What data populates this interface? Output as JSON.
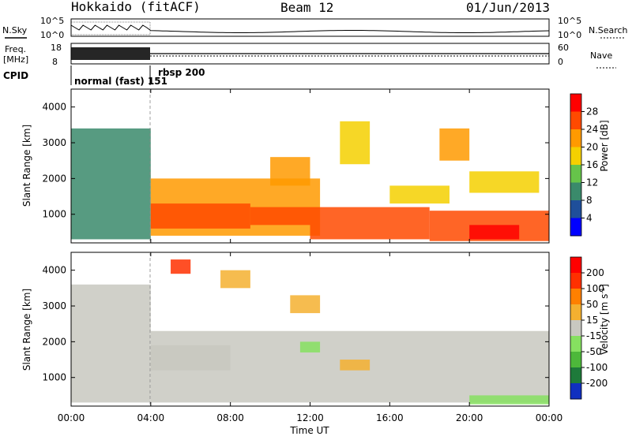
{
  "header": {
    "station": "Hokkaido (fitACF)",
    "beam": "Beam 12",
    "date": "01/Jun/2013"
  },
  "noise_panel": {
    "left_label": "N.Sky",
    "right_label": "N.Search",
    "left_ticks": [
      "10^5",
      "10^0"
    ],
    "right_ticks": [
      "10^5",
      "10^0"
    ]
  },
  "freq_panel": {
    "left_label_1": "Freq.",
    "left_label_2": "[MHz]",
    "right_label": "Nave",
    "left_ticks": [
      "18",
      "8"
    ],
    "right_ticks": [
      "60",
      "0"
    ]
  },
  "cpid_panel": {
    "label": "CPID",
    "modes": [
      {
        "name": "normal (fast) 151",
        "start_hour": 0
      },
      {
        "name": "rbsp 200",
        "start_hour": 4
      }
    ]
  },
  "x_axis": {
    "label": "Time UT",
    "ticks": [
      "00:00",
      "04:00",
      "08:00",
      "12:00",
      "16:00",
      "20:00",
      "00:00"
    ],
    "range_hours": [
      0,
      24
    ]
  },
  "power_panel": {
    "ylabel": "Slant Range [km]",
    "yticks": [
      "1000",
      "2000",
      "3000",
      "4000"
    ],
    "colorbar_title": "Power [dB]",
    "colorbar_ticks": [
      "28",
      "24",
      "20",
      "16",
      "12",
      "8",
      "4"
    ],
    "colors": [
      "#0000ff",
      "#1f4f9a",
      "#3a8a6b",
      "#66c44a",
      "#f5d000",
      "#ff9a00",
      "#ff4a00",
      "#ff0000"
    ]
  },
  "velocity_panel": {
    "ylabel": "Slant Range [km]",
    "yticks": [
      "1000",
      "2000",
      "3000",
      "4000"
    ],
    "colorbar_title": "Velocity [m s",
    "colorbar_title_sup": "-1",
    "colorbar_title_end": "]",
    "colorbar_ticks": [
      "200",
      "100",
      "50",
      "15",
      "-15",
      "-50",
      "-100",
      "-200"
    ],
    "colors": [
      "#1030c0",
      "#1e7a3a",
      "#4db83a",
      "#86e060",
      "#c8c8c0",
      "#f4b030",
      "#ff8000",
      "#ff3000",
      "#ff0000"
    ]
  },
  "chart_data": {
    "type": "heatmap",
    "title": "Hokkaido (fitACF) Beam 12 01/Jun/2013",
    "xlabel": "Time UT",
    "ylabel": "Slant Range [km]",
    "xlim_hours": [
      0,
      24
    ],
    "ylim_km": [
      200,
      4500
    ],
    "panels": [
      {
        "name": "Power [dB]",
        "range": [
          0,
          30
        ],
        "regions": [
          {
            "t": [
              0,
              4
            ],
            "r": [
              300,
              3400
            ],
            "value": 8
          },
          {
            "t": [
              4,
              12.5
            ],
            "r": [
              400,
              2000
            ],
            "value": 20
          },
          {
            "t": [
              4,
              9
            ],
            "r": [
              600,
              1300
            ],
            "value": 24
          },
          {
            "t": [
              9,
              12
            ],
            "r": [
              700,
              1200
            ],
            "value": 26
          },
          {
            "t": [
              12,
              18
            ],
            "r": [
              300,
              1200
            ],
            "value": 24
          },
          {
            "t": [
              18,
              24
            ],
            "r": [
              250,
              1100
            ],
            "value": 26
          },
          {
            "t": [
              20,
              22.5
            ],
            "r": [
              300,
              700
            ],
            "value": 28
          },
          {
            "t": [
              10,
              12
            ],
            "r": [
              1800,
              2600
            ],
            "value": 22
          },
          {
            "t": [
              13.5,
              15
            ],
            "r": [
              2400,
              3600
            ],
            "value": 18
          },
          {
            "t": [
              18.5,
              20
            ],
            "r": [
              2500,
              3400
            ],
            "value": 20
          },
          {
            "t": [
              20,
              23.5
            ],
            "r": [
              1600,
              2200
            ],
            "value": 16
          },
          {
            "t": [
              16,
              19
            ],
            "r": [
              1300,
              1800
            ],
            "value": 18
          }
        ]
      },
      {
        "name": "Velocity [m s-1]",
        "range": [
          -200,
          200
        ],
        "regions": [
          {
            "t": [
              0,
              4
            ],
            "r": [
              300,
              3600
            ],
            "value": 0
          },
          {
            "t": [
              4,
              24
            ],
            "r": [
              300,
              2300
            ],
            "value": 0
          },
          {
            "t": [
              4,
              8
            ],
            "r": [
              1200,
              1900
            ],
            "value": 0
          },
          {
            "t": [
              11,
              12.5
            ],
            "r": [
              2800,
              3300
            ],
            "value": 60
          },
          {
            "t": [
              11.5,
              12.5
            ],
            "r": [
              1700,
              2000
            ],
            "value": -60
          },
          {
            "t": [
              5,
              6
            ],
            "r": [
              3900,
              4300
            ],
            "value": 150
          },
          {
            "t": [
              7.5,
              9
            ],
            "r": [
              3500,
              4000
            ],
            "value": 60
          },
          {
            "t": [
              13.5,
              15
            ],
            "r": [
              1200,
              1500
            ],
            "value": 60
          },
          {
            "t": [
              20,
              24
            ],
            "r": [
              250,
              500
            ],
            "value": -50
          }
        ]
      }
    ]
  }
}
